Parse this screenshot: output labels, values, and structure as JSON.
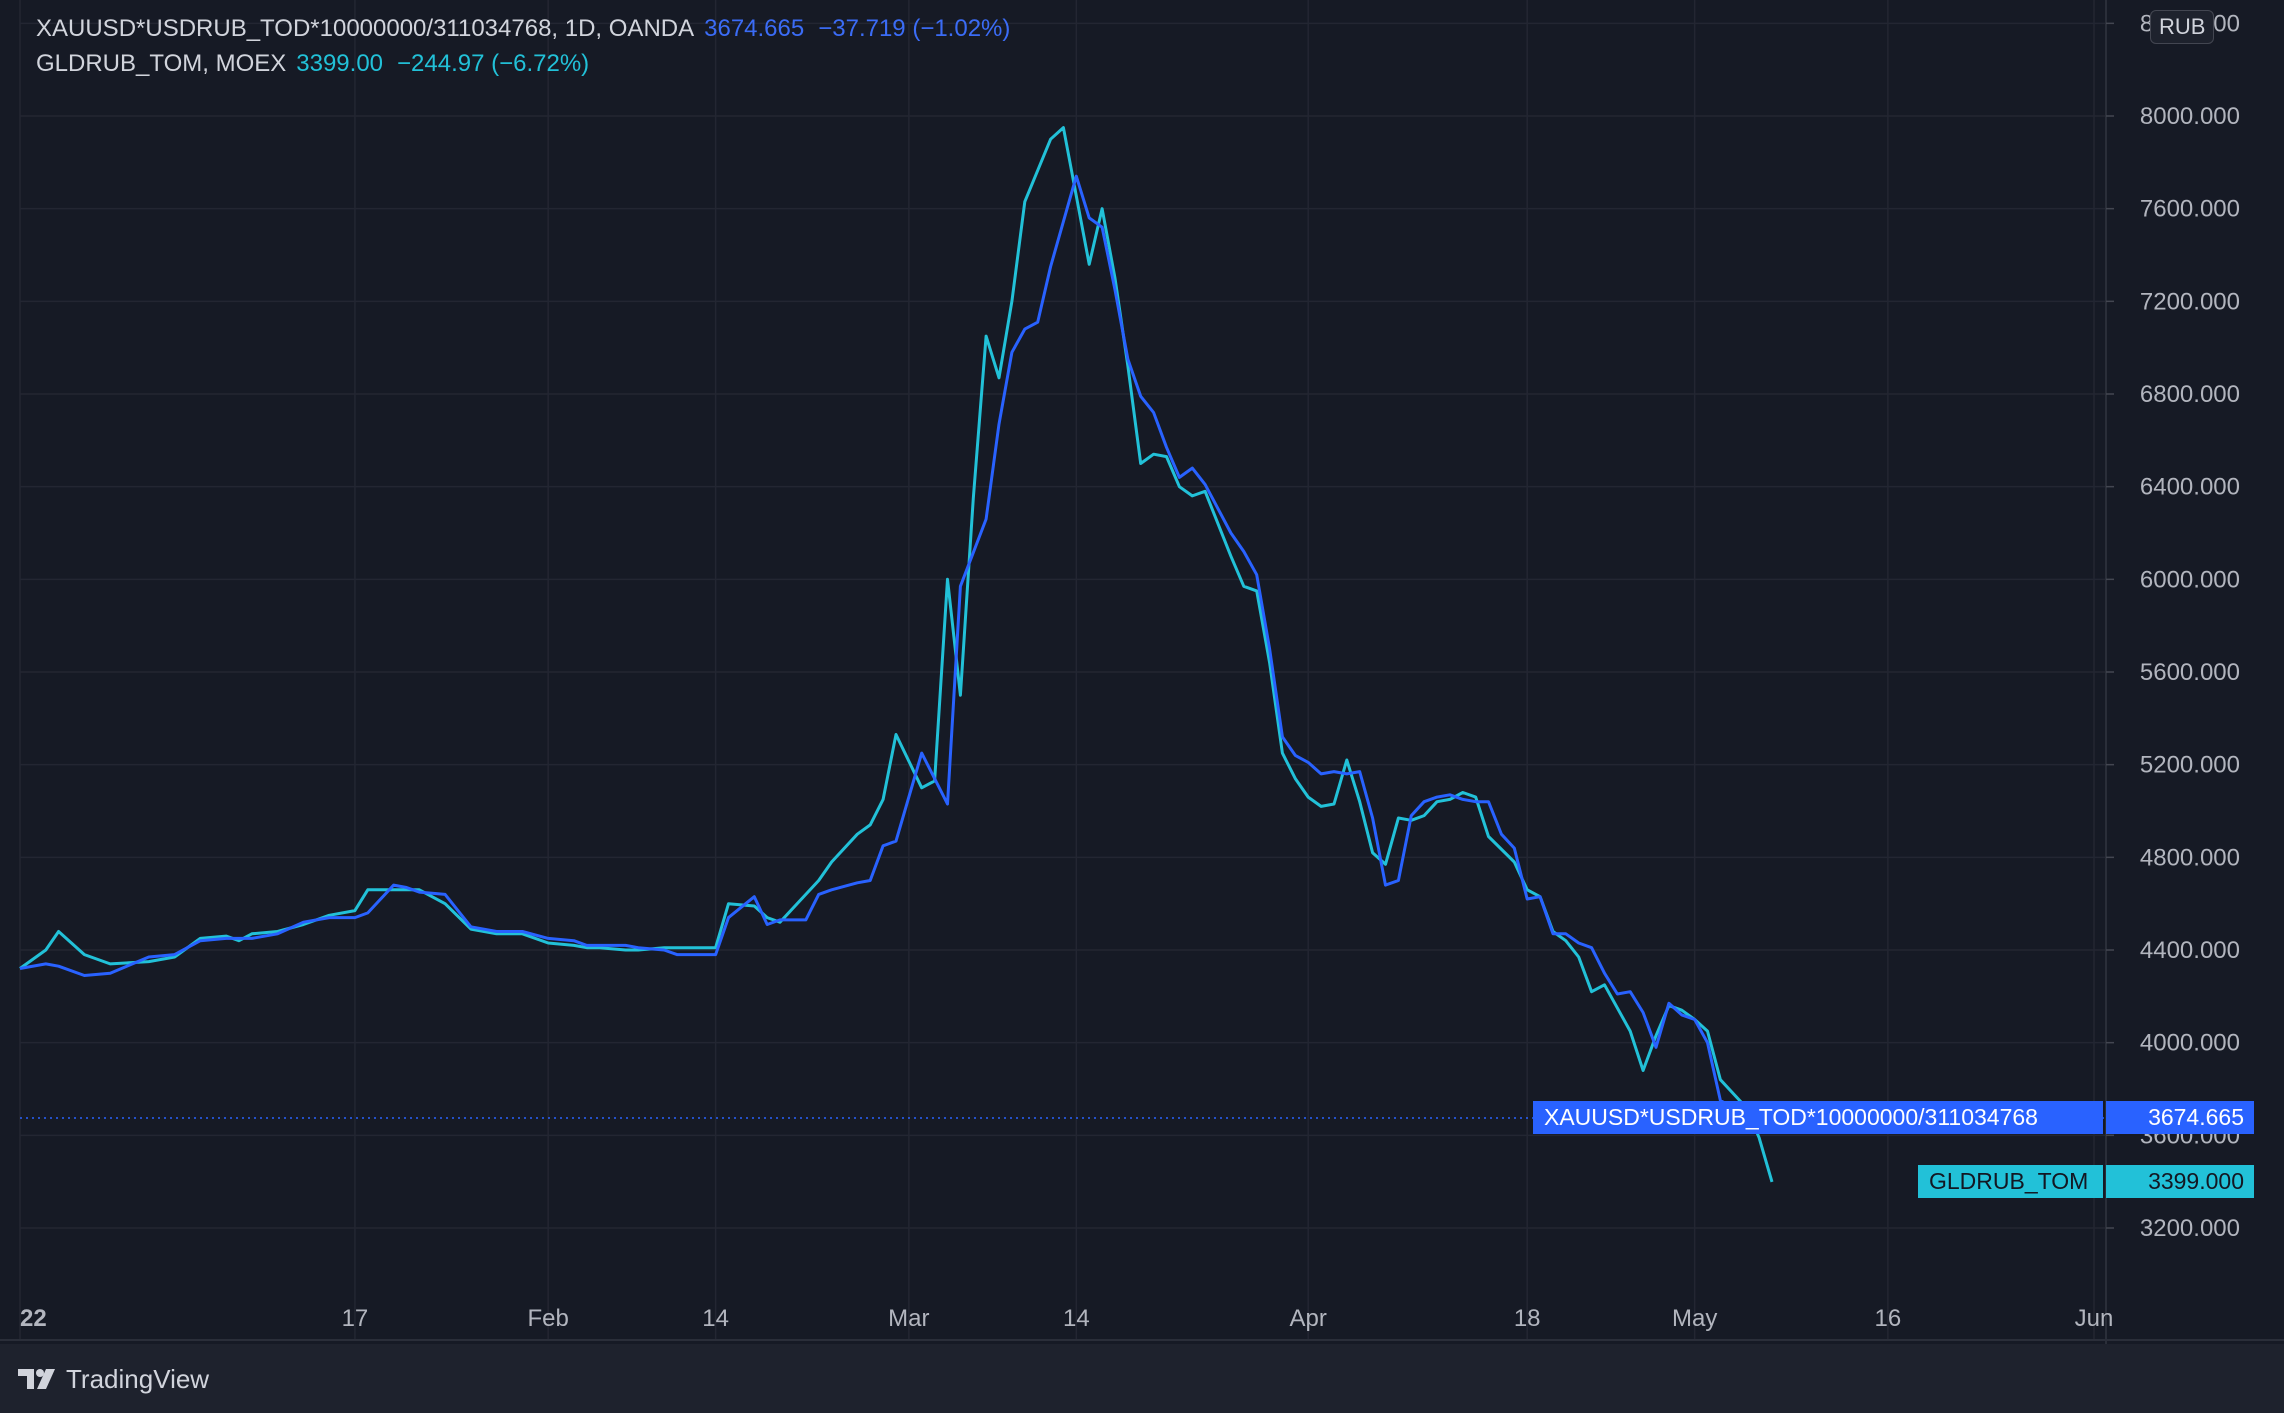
{
  "header": {
    "series1": {
      "name": "XAUUSD*USDRUB_TOD*10000000/311034768, 1D, OANDA",
      "value": "3674.665",
      "change": "−37.719 (−1.02%)"
    },
    "series2": {
      "name": "GLDRUB_TOM, MOEX",
      "value": "3399.00",
      "change": "−244.97 (−6.72%)"
    }
  },
  "currency": "RUB",
  "price_labels": {
    "series1_tag": "XAUUSD*USDRUB_TOD*10000000/311034768",
    "series1_price": "3674.665",
    "series2_tag": "GLDRUB_TOM",
    "series2_price": "3399.000"
  },
  "brand": "TradingView",
  "colors": {
    "series1": "#2962ff",
    "series2": "#22c1d8",
    "background": "#161a25",
    "grid": "#232632",
    "text": "#b2b5be"
  },
  "chart_data": {
    "type": "line",
    "title": "",
    "xlabel": "",
    "ylabel": "",
    "x_tick_labels": [
      "22",
      "17",
      "Feb",
      "14",
      "Mar",
      "14",
      "Apr",
      "18",
      "May",
      "16",
      "Jun"
    ],
    "y_tick_labels": [
      "3200.000",
      "3600.000",
      "4000.000",
      "4400.000",
      "4800.000",
      "5200.000",
      "5600.000",
      "6000.000",
      "6400.000",
      "6800.000",
      "7200.000",
      "7600.000",
      "8000.000",
      "8400.000"
    ],
    "ylim": [
      2950,
      8450
    ],
    "grid": true,
    "x_ticks": [
      {
        "label": "22",
        "day": 0
      },
      {
        "label": "17",
        "day": 26
      },
      {
        "label": "Feb",
        "day": 41
      },
      {
        "label": "14",
        "day": 54
      },
      {
        "label": "Mar",
        "day": 69
      },
      {
        "label": "14",
        "day": 82
      },
      {
        "label": "Apr",
        "day": 100
      },
      {
        "label": "18",
        "day": 117
      },
      {
        "label": "May",
        "day": 130
      },
      {
        "label": "16",
        "day": 145
      },
      {
        "label": "Jun",
        "day": 161
      }
    ],
    "x_range": [
      0,
      161
    ],
    "series": [
      {
        "name": "XAUUSD*USDRUB_TOD*10000000/311034768",
        "color": "#2962ff",
        "points": [
          [
            0,
            4320
          ],
          [
            2,
            4340
          ],
          [
            3,
            4330
          ],
          [
            5,
            4290
          ],
          [
            7,
            4300
          ],
          [
            10,
            4370
          ],
          [
            12,
            4380
          ],
          [
            14,
            4440
          ],
          [
            16,
            4450
          ],
          [
            17,
            4450
          ],
          [
            18,
            4450
          ],
          [
            20,
            4470
          ],
          [
            22,
            4520
          ],
          [
            24,
            4540
          ],
          [
            26,
            4540
          ],
          [
            27,
            4560
          ],
          [
            29,
            4680
          ],
          [
            30,
            4670
          ],
          [
            31,
            4650
          ],
          [
            33,
            4640
          ],
          [
            35,
            4500
          ],
          [
            37,
            4480
          ],
          [
            39,
            4480
          ],
          [
            41,
            4450
          ],
          [
            43,
            4440
          ],
          [
            44,
            4420
          ],
          [
            45,
            4420
          ],
          [
            47,
            4420
          ],
          [
            48,
            4410
          ],
          [
            50,
            4400
          ],
          [
            51,
            4380
          ],
          [
            54,
            4380
          ],
          [
            55,
            4540
          ],
          [
            57,
            4630
          ],
          [
            58,
            4510
          ],
          [
            59,
            4530
          ],
          [
            61,
            4530
          ],
          [
            62,
            4640
          ],
          [
            63,
            4660
          ],
          [
            65,
            4690
          ],
          [
            66,
            4700
          ],
          [
            67,
            4850
          ],
          [
            68,
            4870
          ],
          [
            70,
            5250
          ],
          [
            72,
            5030
          ],
          [
            73,
            5970
          ],
          [
            75,
            6260
          ],
          [
            76,
            6670
          ],
          [
            77,
            6980
          ],
          [
            78,
            7080
          ],
          [
            79,
            7110
          ],
          [
            80,
            7350
          ],
          [
            82,
            7740
          ],
          [
            83,
            7560
          ],
          [
            84,
            7520
          ],
          [
            85,
            7250
          ],
          [
            86,
            6950
          ],
          [
            87,
            6790
          ],
          [
            88,
            6720
          ],
          [
            89,
            6570
          ],
          [
            90,
            6440
          ],
          [
            91,
            6480
          ],
          [
            92,
            6410
          ],
          [
            94,
            6200
          ],
          [
            95,
            6120
          ],
          [
            96,
            6020
          ],
          [
            97,
            5700
          ],
          [
            98,
            5320
          ],
          [
            99,
            5240
          ],
          [
            100,
            5210
          ],
          [
            101,
            5160
          ],
          [
            102,
            5170
          ],
          [
            103,
            5160
          ],
          [
            104,
            5170
          ],
          [
            105,
            4970
          ],
          [
            106,
            4680
          ],
          [
            107,
            4700
          ],
          [
            108,
            4980
          ],
          [
            109,
            5040
          ],
          [
            110,
            5060
          ],
          [
            111,
            5070
          ],
          [
            112,
            5050
          ],
          [
            113,
            5040
          ],
          [
            114,
            5040
          ],
          [
            115,
            4900
          ],
          [
            116,
            4840
          ],
          [
            117,
            4620
          ],
          [
            118,
            4630
          ],
          [
            119,
            4470
          ],
          [
            120,
            4470
          ],
          [
            121,
            4430
          ],
          [
            122,
            4410
          ],
          [
            123,
            4300
          ],
          [
            124,
            4210
          ],
          [
            125,
            4220
          ],
          [
            126,
            4130
          ],
          [
            127,
            3980
          ],
          [
            128,
            4170
          ],
          [
            129,
            4120
          ],
          [
            130,
            4100
          ],
          [
            131,
            4000
          ],
          [
            132,
            3750
          ],
          [
            133,
            3720
          ],
          [
            134,
            3740
          ],
          [
            135,
            3700
          ],
          [
            136,
            3675
          ]
        ]
      },
      {
        "name": "GLDRUB_TOM",
        "color": "#22c1d8",
        "points": [
          [
            0,
            4320
          ],
          [
            2,
            4400
          ],
          [
            3,
            4480
          ],
          [
            5,
            4380
          ],
          [
            7,
            4340
          ],
          [
            10,
            4350
          ],
          [
            12,
            4370
          ],
          [
            14,
            4450
          ],
          [
            16,
            4460
          ],
          [
            17,
            4440
          ],
          [
            18,
            4470
          ],
          [
            20,
            4480
          ],
          [
            22,
            4510
          ],
          [
            24,
            4550
          ],
          [
            26,
            4570
          ],
          [
            27,
            4660
          ],
          [
            29,
            4660
          ],
          [
            30,
            4660
          ],
          [
            31,
            4660
          ],
          [
            33,
            4600
          ],
          [
            35,
            4490
          ],
          [
            37,
            4470
          ],
          [
            39,
            4470
          ],
          [
            41,
            4430
          ],
          [
            43,
            4420
          ],
          [
            44,
            4410
          ],
          [
            45,
            4410
          ],
          [
            47,
            4400
          ],
          [
            48,
            4400
          ],
          [
            50,
            4410
          ],
          [
            51,
            4410
          ],
          [
            54,
            4410
          ],
          [
            55,
            4600
          ],
          [
            57,
            4590
          ],
          [
            58,
            4540
          ],
          [
            59,
            4520
          ],
          [
            61,
            4640
          ],
          [
            62,
            4700
          ],
          [
            63,
            4780
          ],
          [
            65,
            4900
          ],
          [
            66,
            4940
          ],
          [
            67,
            5050
          ],
          [
            68,
            5330
          ],
          [
            70,
            5100
          ],
          [
            71,
            5130
          ],
          [
            72,
            6000
          ],
          [
            73,
            5500
          ],
          [
            74,
            6350
          ],
          [
            75,
            7050
          ],
          [
            76,
            6870
          ],
          [
            77,
            7200
          ],
          [
            78,
            7630
          ],
          [
            80,
            7900
          ],
          [
            81,
            7950
          ],
          [
            83,
            7360
          ],
          [
            84,
            7600
          ],
          [
            85,
            7300
          ],
          [
            86,
            6920
          ],
          [
            87,
            6500
          ],
          [
            88,
            6540
          ],
          [
            89,
            6530
          ],
          [
            90,
            6400
          ],
          [
            91,
            6360
          ],
          [
            92,
            6380
          ],
          [
            94,
            6100
          ],
          [
            95,
            5970
          ],
          [
            96,
            5950
          ],
          [
            97,
            5640
          ],
          [
            98,
            5250
          ],
          [
            99,
            5140
          ],
          [
            100,
            5060
          ],
          [
            101,
            5020
          ],
          [
            102,
            5030
          ],
          [
            103,
            5220
          ],
          [
            104,
            5040
          ],
          [
            105,
            4820
          ],
          [
            106,
            4770
          ],
          [
            107,
            4970
          ],
          [
            108,
            4960
          ],
          [
            109,
            4980
          ],
          [
            110,
            5040
          ],
          [
            111,
            5050
          ],
          [
            112,
            5080
          ],
          [
            113,
            5060
          ],
          [
            114,
            4890
          ],
          [
            116,
            4780
          ],
          [
            117,
            4660
          ],
          [
            118,
            4630
          ],
          [
            119,
            4480
          ],
          [
            120,
            4440
          ],
          [
            121,
            4370
          ],
          [
            122,
            4220
          ],
          [
            123,
            4250
          ],
          [
            125,
            4050
          ],
          [
            126,
            3880
          ],
          [
            127,
            4030
          ],
          [
            128,
            4160
          ],
          [
            129,
            4140
          ],
          [
            130,
            4100
          ],
          [
            131,
            4050
          ],
          [
            132,
            3840
          ],
          [
            133,
            3780
          ],
          [
            134,
            3720
          ],
          [
            135,
            3590
          ],
          [
            136,
            3399
          ]
        ]
      }
    ]
  }
}
